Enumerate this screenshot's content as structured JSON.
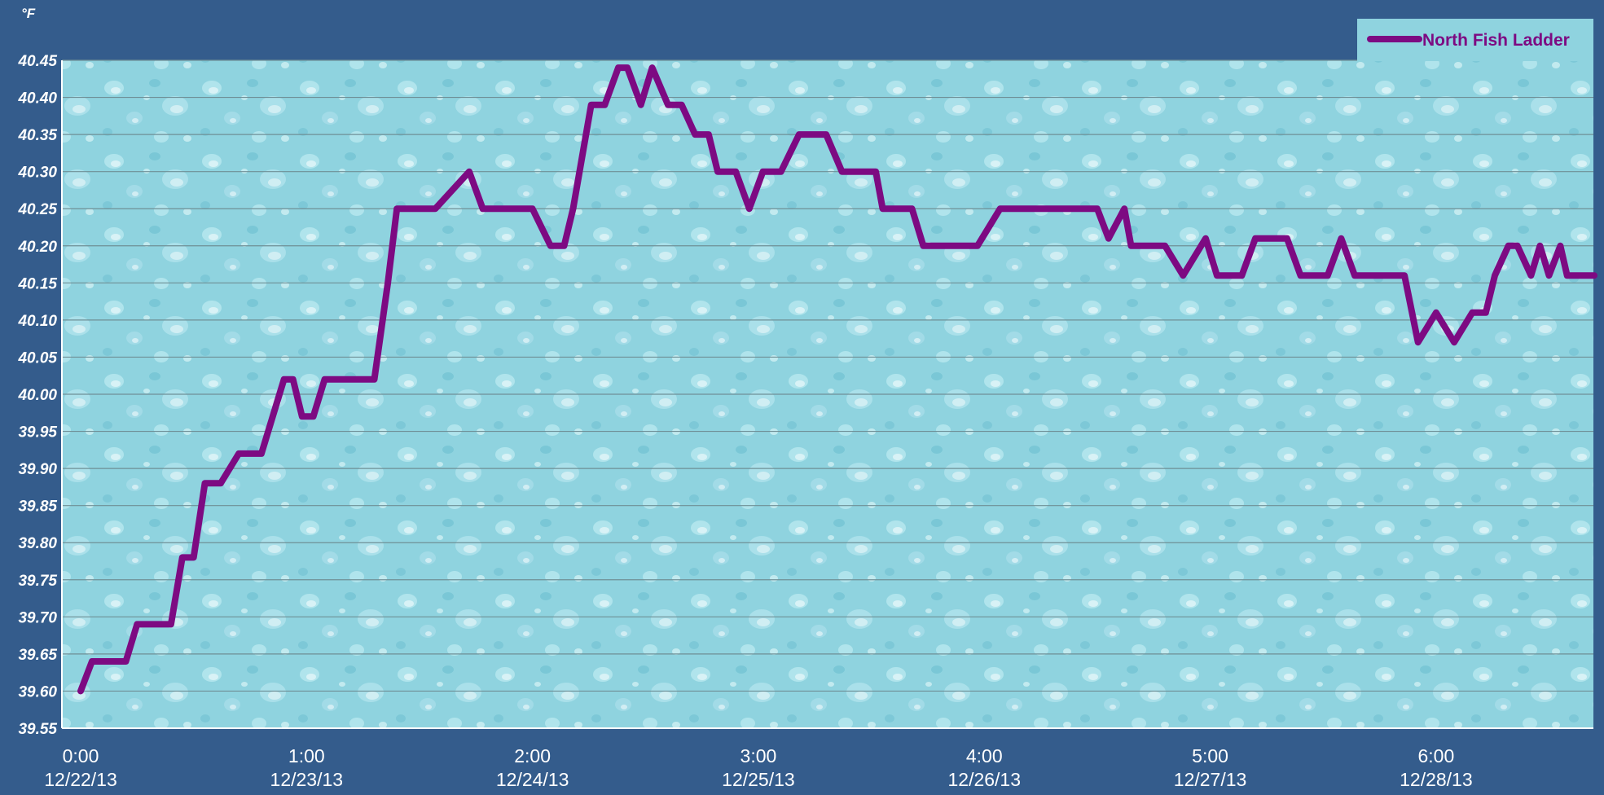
{
  "chart_data": {
    "type": "line",
    "title": "",
    "ylabel": "°F",
    "xlabel": "",
    "ylim": [
      39.55,
      40.45
    ],
    "ytick_step": 0.05,
    "yticks": [
      "39.55",
      "39.60",
      "39.65",
      "39.70",
      "39.75",
      "39.80",
      "39.85",
      "39.90",
      "39.95",
      "40.00",
      "40.05",
      "40.10",
      "40.15",
      "40.20",
      "40.25",
      "40.30",
      "40.35",
      "40.40",
      "40.45"
    ],
    "xlim": [
      0,
      6.7
    ],
    "xticks": [
      {
        "x": 0,
        "time": "0:00",
        "date": "12/22/13"
      },
      {
        "x": 1,
        "time": "1:00",
        "date": "12/23/13"
      },
      {
        "x": 2,
        "time": "2:00",
        "date": "12/24/13"
      },
      {
        "x": 3,
        "time": "3:00",
        "date": "12/25/13"
      },
      {
        "x": 4,
        "time": "4:00",
        "date": "12/26/13"
      },
      {
        "x": 5,
        "time": "5:00",
        "date": "12/27/13"
      },
      {
        "x": 6,
        "time": "6:00",
        "date": "12/28/13"
      }
    ],
    "grid": true,
    "legend_position": "top-right",
    "background": "water-droplet texture",
    "series": [
      {
        "name": "North Fish Ladder",
        "color": "#7d0a82",
        "x": [
          0,
          0.05,
          0.2,
          0.25,
          0.33,
          0.4,
          0.45,
          0.5,
          0.55,
          0.58,
          0.62,
          0.7,
          0.72,
          0.75,
          0.8,
          0.9,
          0.94,
          0.98,
          1.03,
          1.08,
          1.11,
          1.16,
          1.22,
          1.3,
          1.36,
          1.4,
          1.43,
          1.47,
          1.52,
          1.57,
          1.72,
          1.78,
          1.84,
          1.87,
          1.9,
          2.0,
          2.08,
          2.14,
          2.18,
          2.26,
          2.32,
          2.38,
          2.42,
          2.48,
          2.53,
          2.6,
          2.63,
          2.66,
          2.72,
          2.78,
          2.82,
          2.86,
          2.9,
          2.96,
          3.02,
          3.1,
          3.18,
          3.22,
          3.26,
          3.3,
          3.37,
          3.47,
          3.52,
          3.55,
          3.62,
          3.68,
          3.73,
          3.86,
          3.9,
          3.97,
          4.07,
          4.15,
          4.3,
          4.38,
          4.44,
          4.5,
          4.55,
          4.62,
          4.65,
          4.68,
          4.74,
          4.8,
          4.88,
          4.98,
          5.03,
          5.06,
          5.1,
          5.14,
          5.2,
          5.28,
          5.34,
          5.4,
          5.46,
          5.48,
          5.52,
          5.58,
          5.64,
          5.72,
          5.78,
          5.86,
          5.92,
          6.0,
          6.08,
          6.16,
          6.22,
          6.26,
          6.32,
          6.36,
          6.42,
          6.46,
          6.5,
          6.55,
          6.58,
          6.62,
          6.7
        ],
        "values": [
          39.6,
          39.64,
          39.64,
          39.69,
          39.69,
          39.69,
          39.78,
          39.78,
          39.88,
          39.88,
          39.88,
          39.92,
          39.92,
          39.92,
          39.92,
          40.02,
          40.02,
          39.97,
          39.97,
          40.02,
          40.02,
          40.02,
          40.02,
          40.02,
          40.15,
          40.25,
          40.25,
          40.25,
          40.25,
          40.25,
          40.3,
          40.25,
          40.25,
          40.25,
          40.25,
          40.25,
          40.2,
          40.2,
          40.25,
          40.39,
          40.39,
          40.44,
          40.44,
          40.39,
          40.44,
          40.39,
          40.39,
          40.39,
          40.35,
          40.35,
          40.3,
          40.3,
          40.3,
          40.25,
          40.3,
          40.3,
          40.35,
          40.35,
          40.35,
          40.35,
          40.3,
          40.3,
          40.3,
          40.25,
          40.25,
          40.25,
          40.2,
          40.2,
          40.2,
          40.2,
          40.25,
          40.25,
          40.25,
          40.25,
          40.25,
          40.25,
          40.21,
          40.25,
          40.2,
          40.2,
          40.2,
          40.2,
          40.16,
          40.21,
          40.16,
          40.16,
          40.16,
          40.16,
          40.21,
          40.21,
          40.21,
          40.16,
          40.16,
          40.16,
          40.16,
          40.21,
          40.16,
          40.16,
          40.16,
          40.16,
          40.07,
          40.11,
          40.07,
          40.11,
          40.11,
          40.16,
          40.2,
          40.2,
          40.16,
          40.2,
          40.16,
          40.2,
          40.16,
          40.16,
          40.16
        ]
      }
    ]
  }
}
